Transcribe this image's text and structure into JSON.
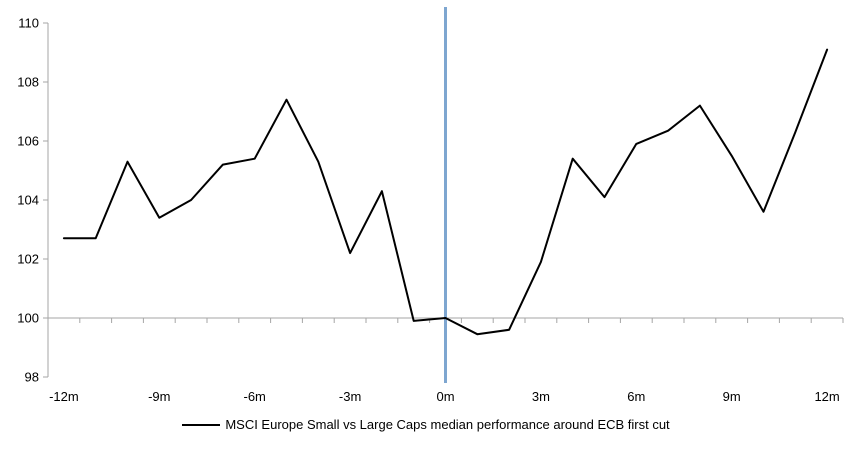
{
  "chart_data": {
    "type": "line",
    "title": "",
    "xlabel": "",
    "ylabel": "",
    "x": [
      -12,
      -11,
      -10,
      -9,
      -8,
      -7,
      -6,
      -5,
      -4,
      -3,
      -2,
      -1,
      0,
      1,
      2,
      3,
      4,
      5,
      6,
      7,
      8,
      9,
      10,
      11,
      12
    ],
    "series": [
      {
        "name": "MSCI Europe Small vs Large Caps median performance around ECB first cut",
        "values": [
          102.7,
          102.7,
          105.3,
          103.4,
          104.0,
          105.2,
          105.4,
          107.4,
          105.3,
          102.2,
          104.3,
          99.9,
          100.0,
          99.45,
          99.6,
          101.9,
          105.4,
          104.1,
          105.9,
          106.35,
          107.2,
          105.5,
          103.6,
          106.3,
          109.1
        ],
        "color": "#000000"
      }
    ],
    "xlim": [
      -12.5,
      12.5
    ],
    "ylim": [
      98,
      110
    ],
    "y_ticks": [
      98,
      100,
      102,
      104,
      106,
      108,
      110
    ],
    "x_tick_labels": [
      "-12m",
      "-9m",
      "-6m",
      "-3m",
      "0m",
      "3m",
      "6m",
      "9m",
      "12m"
    ],
    "x_tick_label_positions": [
      -12,
      -9,
      -6,
      -3,
      0,
      3,
      6,
      9,
      12
    ],
    "x_minor_tick_step": 1,
    "axis_cross_y": 100,
    "grid": "off",
    "legend_position": "bottom-center",
    "axis_color": "#A6A6A6",
    "event_line": {
      "x": 0,
      "color": "#7EA6D0"
    }
  }
}
